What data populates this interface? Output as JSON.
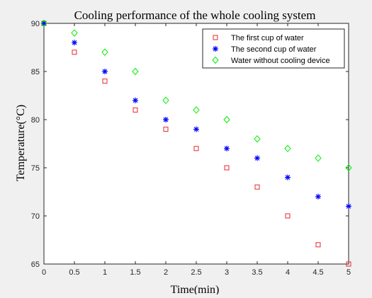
{
  "chart_data": {
    "type": "scatter",
    "title": "Cooling performance of the whole cooling system",
    "xlabel": "Time(min)",
    "ylabel": "Temperature(°C)",
    "xlim": [
      0,
      5
    ],
    "ylim": [
      65,
      90
    ],
    "xticks": [
      0,
      0.5,
      1,
      1.5,
      2,
      2.5,
      3,
      3.5,
      4,
      4.5,
      5
    ],
    "yticks": [
      65,
      70,
      75,
      80,
      85,
      90
    ],
    "xtick_labels": [
      "0",
      "0.5",
      "1",
      "1.5",
      "2",
      "2.5",
      "3",
      "3.5",
      "4",
      "4.5",
      "5"
    ],
    "ytick_labels": [
      "65",
      "70",
      "75",
      "80",
      "85",
      "90"
    ],
    "x": [
      0,
      0.5,
      1,
      1.5,
      2,
      2.5,
      3,
      3.5,
      4,
      4.5,
      5
    ],
    "grid": false,
    "legend_position": "top-right",
    "series": [
      {
        "name": "The first cup of water",
        "marker": "square",
        "color": "#e8272c",
        "values": [
          90,
          87,
          84,
          81,
          79,
          77,
          75,
          73,
          70,
          67,
          65
        ]
      },
      {
        "name": "The second cup of water",
        "marker": "asterisk",
        "color": "#0000ff",
        "values": [
          90,
          88,
          85,
          82,
          80,
          79,
          77,
          76,
          74,
          72,
          71
        ]
      },
      {
        "name": "Water without cooling device",
        "marker": "diamond",
        "color": "#00ee00",
        "values": [
          90,
          89,
          87,
          85,
          82,
          81,
          80,
          78,
          77,
          76,
          75
        ]
      }
    ]
  }
}
